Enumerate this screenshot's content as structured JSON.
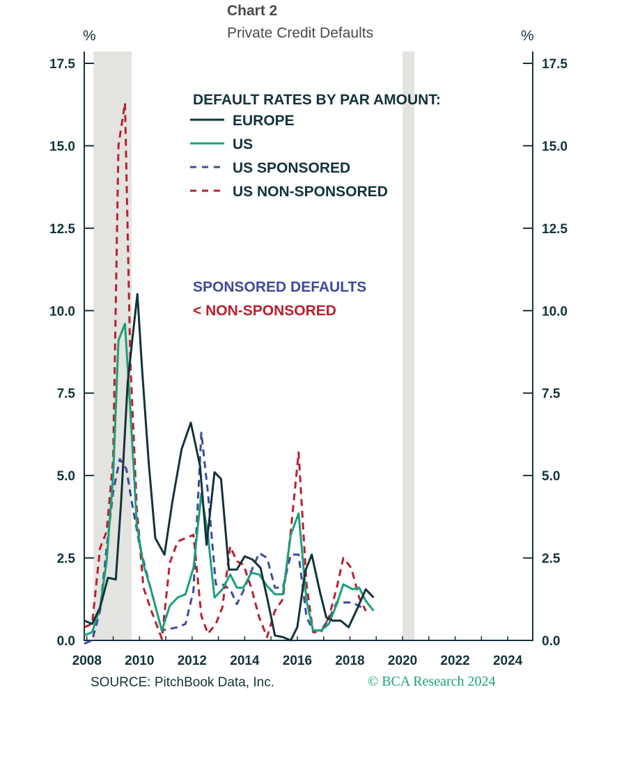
{
  "header": {
    "chart_number": "Chart 2",
    "title": "Private Credit Defaults",
    "left_unit": "%",
    "right_unit": "%"
  },
  "footer": {
    "source": "SOURCE: PitchBook Data, Inc.",
    "credit": "© BCA Research 2024"
  },
  "colors": {
    "europe": "#12333a",
    "us": "#1aa077",
    "us_sponsored": "#3f4a9c",
    "us_non_sponsored": "#b8202e",
    "recession": "#e3e3df",
    "axis": "#12333a"
  },
  "chart_data": {
    "type": "line",
    "title": "Private Credit Defaults",
    "ylabel": "%",
    "ylim": [
      0,
      17.5
    ],
    "xlim": [
      2007.9,
      2024.95
    ],
    "y_ticks": [
      "0.0",
      "2.5",
      "5.0",
      "7.5",
      "10.0",
      "12.5",
      "15.0",
      "17.5"
    ],
    "y_tick_values": [
      0,
      2.5,
      5,
      7.5,
      10,
      12.5,
      15,
      17.5
    ],
    "x_ticks": [
      "2008",
      "2010",
      "2012",
      "2014",
      "2016",
      "2018",
      "2020",
      "2022",
      "2024"
    ],
    "x_tick_values": [
      2008,
      2010,
      2012,
      2014,
      2016,
      2018,
      2020,
      2022,
      2024
    ],
    "grid": false,
    "legend_position": "top",
    "legend_title": "DEFAULT RATES BY PAR AMOUNT:",
    "recession_bands": [
      [
        2008.25,
        2009.7
      ],
      [
        2020.0,
        2020.45
      ]
    ],
    "annotations": [
      {
        "text": "SPONSORED DEFAULTS",
        "color": "#3f4a9c"
      },
      {
        "text": "< NON-SPONSORED",
        "color": "#b8202e"
      }
    ],
    "series": [
      {
        "name": "EUROPE",
        "style": "solid",
        "color": "#12333a",
        "points": [
          [
            2007.9,
            0.6
          ],
          [
            2008.2,
            0.5
          ],
          [
            2008.5,
            1.0
          ],
          [
            2008.8,
            1.9
          ],
          [
            2009.1,
            1.85
          ],
          [
            2009.3,
            4.2
          ],
          [
            2009.55,
            7.8
          ],
          [
            2009.75,
            9.3
          ],
          [
            2009.92,
            10.5
          ],
          [
            2010.1,
            8.2
          ],
          [
            2010.35,
            5.4
          ],
          [
            2010.6,
            3.1
          ],
          [
            2010.95,
            2.6
          ],
          [
            2011.25,
            4.2
          ],
          [
            2011.6,
            5.8
          ],
          [
            2011.95,
            6.6
          ],
          [
            2012.3,
            5.3
          ],
          [
            2012.55,
            2.9
          ],
          [
            2012.85,
            5.1
          ],
          [
            2013.1,
            4.9
          ],
          [
            2013.4,
            2.15
          ],
          [
            2013.7,
            2.15
          ],
          [
            2014.0,
            2.55
          ],
          [
            2014.3,
            2.45
          ],
          [
            2014.6,
            2.2
          ],
          [
            2014.85,
            1.3
          ],
          [
            2015.15,
            0.15
          ],
          [
            2015.45,
            0.1
          ],
          [
            2015.75,
            0.0
          ],
          [
            2016.0,
            0.4
          ],
          [
            2016.3,
            2.1
          ],
          [
            2016.55,
            2.6
          ],
          [
            2016.85,
            1.5
          ],
          [
            2017.1,
            0.7
          ],
          [
            2017.35,
            0.6
          ],
          [
            2017.65,
            0.6
          ],
          [
            2017.95,
            0.4
          ],
          [
            2018.3,
            1.0
          ],
          [
            2018.6,
            1.55
          ],
          [
            2018.9,
            1.3
          ]
        ]
      },
      {
        "name": "US",
        "style": "solid",
        "color": "#1aa077",
        "points": [
          [
            2007.9,
            0.15
          ],
          [
            2008.2,
            0.25
          ],
          [
            2008.5,
            1.0
          ],
          [
            2008.75,
            2.4
          ],
          [
            2009.0,
            5.0
          ],
          [
            2009.2,
            9.1
          ],
          [
            2009.45,
            9.6
          ],
          [
            2009.65,
            7.0
          ],
          [
            2009.9,
            3.5
          ],
          [
            2010.15,
            2.3
          ],
          [
            2010.45,
            1.5
          ],
          [
            2010.85,
            0.3
          ],
          [
            2011.15,
            1.05
          ],
          [
            2011.45,
            1.3
          ],
          [
            2011.75,
            1.4
          ],
          [
            2012.05,
            2.2
          ],
          [
            2012.35,
            4.45
          ],
          [
            2012.6,
            3.2
          ],
          [
            2012.85,
            1.3
          ],
          [
            2013.15,
            1.55
          ],
          [
            2013.45,
            2.0
          ],
          [
            2013.7,
            1.6
          ],
          [
            2013.95,
            1.6
          ],
          [
            2014.25,
            2.05
          ],
          [
            2014.55,
            2.0
          ],
          [
            2014.85,
            1.65
          ],
          [
            2015.15,
            1.4
          ],
          [
            2015.45,
            1.4
          ],
          [
            2015.75,
            3.2
          ],
          [
            2016.05,
            3.85
          ],
          [
            2016.35,
            1.2
          ],
          [
            2016.6,
            0.3
          ],
          [
            2016.9,
            0.3
          ],
          [
            2017.2,
            0.5
          ],
          [
            2017.5,
            1.1
          ],
          [
            2017.75,
            1.7
          ],
          [
            2018.1,
            1.55
          ],
          [
            2018.35,
            1.6
          ],
          [
            2018.6,
            1.2
          ],
          [
            2018.9,
            0.9
          ]
        ]
      },
      {
        "name": "US SPONSORED",
        "style": "dashed",
        "color": "#3f4a9c",
        "points": [
          [
            2007.9,
            -0.1
          ],
          [
            2008.2,
            0.0
          ],
          [
            2008.5,
            0.9
          ],
          [
            2008.75,
            2.8
          ],
          [
            2009.0,
            4.5
          ],
          [
            2009.25,
            5.5
          ],
          [
            2009.5,
            5.2
          ],
          [
            2009.75,
            4.0
          ],
          [
            2010.0,
            2.9
          ],
          [
            2010.25,
            2.1
          ],
          [
            2010.55,
            1.2
          ],
          [
            2010.85,
            0.3
          ],
          [
            2011.15,
            0.35
          ],
          [
            2011.45,
            0.4
          ],
          [
            2011.75,
            0.5
          ],
          [
            2012.05,
            1.5
          ],
          [
            2012.35,
            6.3
          ],
          [
            2012.6,
            4.5
          ],
          [
            2012.9,
            1.7
          ],
          [
            2013.15,
            1.7
          ],
          [
            2013.45,
            1.55
          ],
          [
            2013.7,
            1.1
          ],
          [
            2013.95,
            1.5
          ],
          [
            2014.25,
            2.1
          ],
          [
            2014.55,
            2.65
          ],
          [
            2014.85,
            2.5
          ],
          [
            2015.15,
            1.6
          ],
          [
            2015.45,
            1.6
          ],
          [
            2015.75,
            2.6
          ],
          [
            2016.05,
            2.6
          ],
          [
            2016.35,
            0.7
          ],
          [
            2016.6,
            0.3
          ],
          [
            2016.9,
            0.3
          ],
          [
            2017.2,
            0.65
          ],
          [
            2017.5,
            1.15
          ],
          [
            2017.75,
            1.15
          ],
          [
            2018.05,
            1.15
          ],
          [
            2018.35,
            1.05
          ],
          [
            2018.6,
            0.9
          ]
        ]
      },
      {
        "name": "US NON-SPONSORED",
        "style": "dashed",
        "color": "#b8202e",
        "points": [
          [
            2007.9,
            0.4
          ],
          [
            2008.2,
            0.5
          ],
          [
            2008.5,
            2.8
          ],
          [
            2008.75,
            3.3
          ],
          [
            2009.0,
            5.5
          ],
          [
            2009.2,
            15.0
          ],
          [
            2009.45,
            16.3
          ],
          [
            2009.65,
            8.5
          ],
          [
            2009.9,
            4.0
          ],
          [
            2010.15,
            1.6
          ],
          [
            2010.45,
            0.9
          ],
          [
            2010.85,
            0.05
          ],
          [
            2011.15,
            2.35
          ],
          [
            2011.45,
            3.0
          ],
          [
            2011.75,
            3.1
          ],
          [
            2012.05,
            3.2
          ],
          [
            2012.35,
            0.75
          ],
          [
            2012.6,
            0.2
          ],
          [
            2012.9,
            0.5
          ],
          [
            2013.15,
            1.0
          ],
          [
            2013.45,
            2.85
          ],
          [
            2013.7,
            2.4
          ],
          [
            2013.95,
            2.3
          ],
          [
            2014.25,
            1.6
          ],
          [
            2014.55,
            0.7
          ],
          [
            2014.85,
            0.1
          ],
          [
            2015.15,
            0.9
          ],
          [
            2015.45,
            1.25
          ],
          [
            2015.75,
            3.3
          ],
          [
            2016.05,
            5.7
          ],
          [
            2016.35,
            1.7
          ],
          [
            2016.6,
            0.25
          ],
          [
            2016.9,
            0.25
          ],
          [
            2017.2,
            0.7
          ],
          [
            2017.5,
            1.6
          ],
          [
            2017.75,
            2.5
          ],
          [
            2018.05,
            2.2
          ],
          [
            2018.35,
            1.3
          ],
          [
            2018.6,
            0.9
          ]
        ]
      }
    ]
  }
}
